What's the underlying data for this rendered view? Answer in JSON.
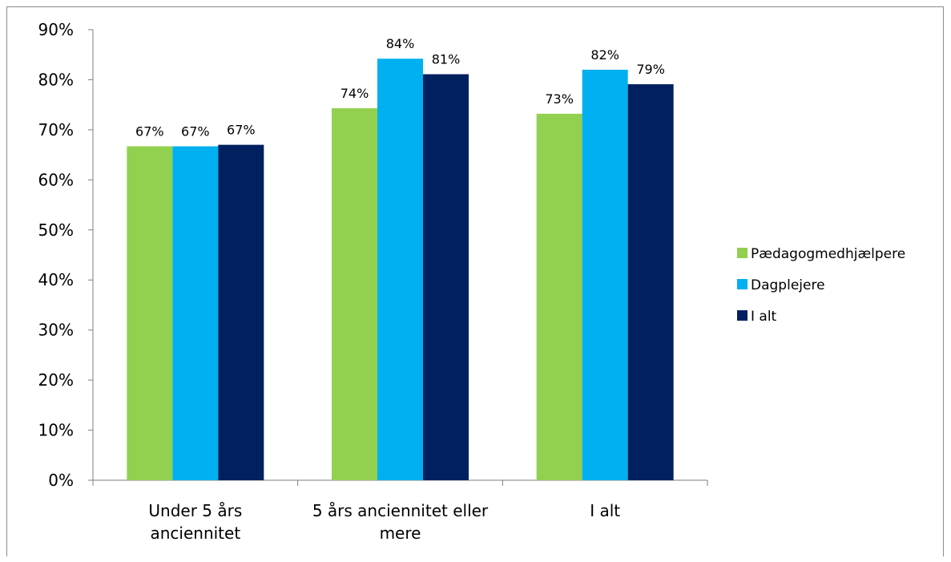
{
  "chart_data": {
    "type": "bar",
    "title": "",
    "xlabel": "",
    "ylabel": "",
    "ylim": [
      0,
      90
    ],
    "y_ticks": [
      "0%",
      "10%",
      "20%",
      "30%",
      "40%",
      "50%",
      "60%",
      "70%",
      "80%",
      "90%"
    ],
    "categories": [
      [
        "Under 5 års",
        "anciennitet"
      ],
      [
        "5 års anciennitet eller",
        "mere"
      ],
      [
        "I alt"
      ]
    ],
    "series": [
      {
        "name": "Pædagogmedhjælpere",
        "color": "#92d050",
        "values": [
          66.7,
          74.3,
          73.2
        ],
        "labels": [
          "67%",
          "74%",
          "73%"
        ]
      },
      {
        "name": "Dagplejere",
        "color": "#00b0f0",
        "values": [
          66.7,
          84.2,
          82.0
        ],
        "labels": [
          "67%",
          "84%",
          "82%"
        ]
      },
      {
        "name": "I alt",
        "color": "#002060",
        "values": [
          67.0,
          81.1,
          79.1
        ],
        "labels": [
          "67%",
          "81%",
          "79%"
        ]
      }
    ],
    "grid": false,
    "legend_position": "right"
  }
}
